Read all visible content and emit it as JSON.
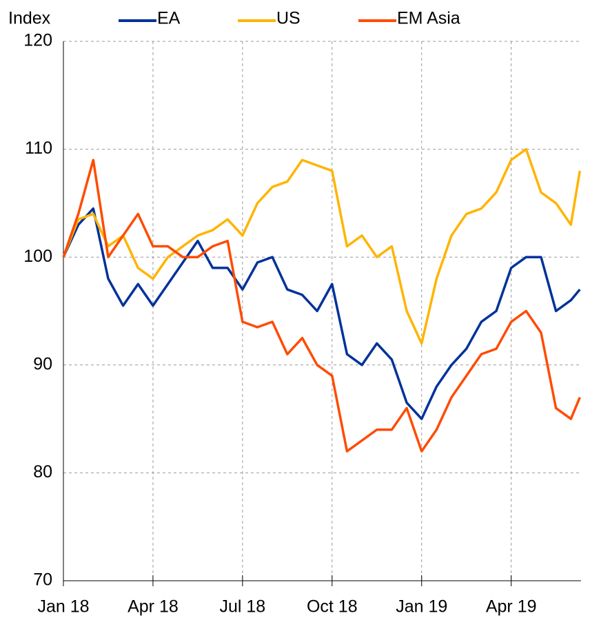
{
  "chart_data": {
    "type": "line",
    "y_label": "Index",
    "x": [
      0,
      0.5,
      1,
      1.5,
      2,
      2.5,
      3,
      3.5,
      4,
      4.5,
      5,
      5.5,
      6,
      6.5,
      7,
      7.5,
      8,
      8.5,
      9,
      9.5,
      10,
      10.5,
      11,
      11.5,
      12,
      12.5,
      13,
      13.5,
      14,
      14.5,
      15,
      15.5,
      16,
      16.5,
      17,
      17.3
    ],
    "series": [
      {
        "name": "EA",
        "color": "#003299",
        "values": [
          100,
          103,
          104.5,
          98,
          95.5,
          97.5,
          95.5,
          97.5,
          99.5,
          101.5,
          99,
          99,
          97,
          99.5,
          100,
          97,
          96.5,
          95,
          97.5,
          91,
          90,
          92,
          90.5,
          86.5,
          85,
          88,
          90,
          91.5,
          94,
          95,
          99,
          100,
          100,
          95,
          96,
          97
        ]
      },
      {
        "name": "US",
        "color": "#ffb400",
        "values": [
          100,
          103.5,
          104,
          101,
          102,
          99,
          98,
          100,
          101,
          102,
          102.5,
          103.5,
          102,
          105,
          106.5,
          107,
          109,
          108.5,
          108,
          101,
          102,
          100,
          101,
          95,
          92,
          98,
          102,
          104,
          104.5,
          106,
          109,
          110,
          106,
          105,
          103,
          108
        ]
      },
      {
        "name": "EM Asia",
        "color": "#ff4b00",
        "values": [
          100,
          104,
          109,
          100,
          102,
          104,
          101,
          101,
          100,
          100,
          101,
          101.5,
          94,
          93.5,
          94,
          91,
          92.5,
          90,
          89,
          82,
          83,
          84,
          84,
          86,
          82,
          84,
          87,
          89,
          91,
          91.5,
          94,
          95,
          93,
          86,
          85,
          87
        ]
      }
    ],
    "xlim": [
      0,
      17.34
    ],
    "xticks": [
      {
        "value": 0,
        "label": "Jan 18"
      },
      {
        "value": 3,
        "label": "Apr 18"
      },
      {
        "value": 6,
        "label": "Jul 18"
      },
      {
        "value": 9,
        "label": "Oct 18"
      },
      {
        "value": 12,
        "label": "Jan 19"
      },
      {
        "value": 15,
        "label": "Apr 19"
      }
    ],
    "ylim": [
      70,
      120
    ],
    "yticks": [
      70,
      80,
      90,
      100,
      110,
      120
    ],
    "grid": true,
    "legend": "top"
  }
}
